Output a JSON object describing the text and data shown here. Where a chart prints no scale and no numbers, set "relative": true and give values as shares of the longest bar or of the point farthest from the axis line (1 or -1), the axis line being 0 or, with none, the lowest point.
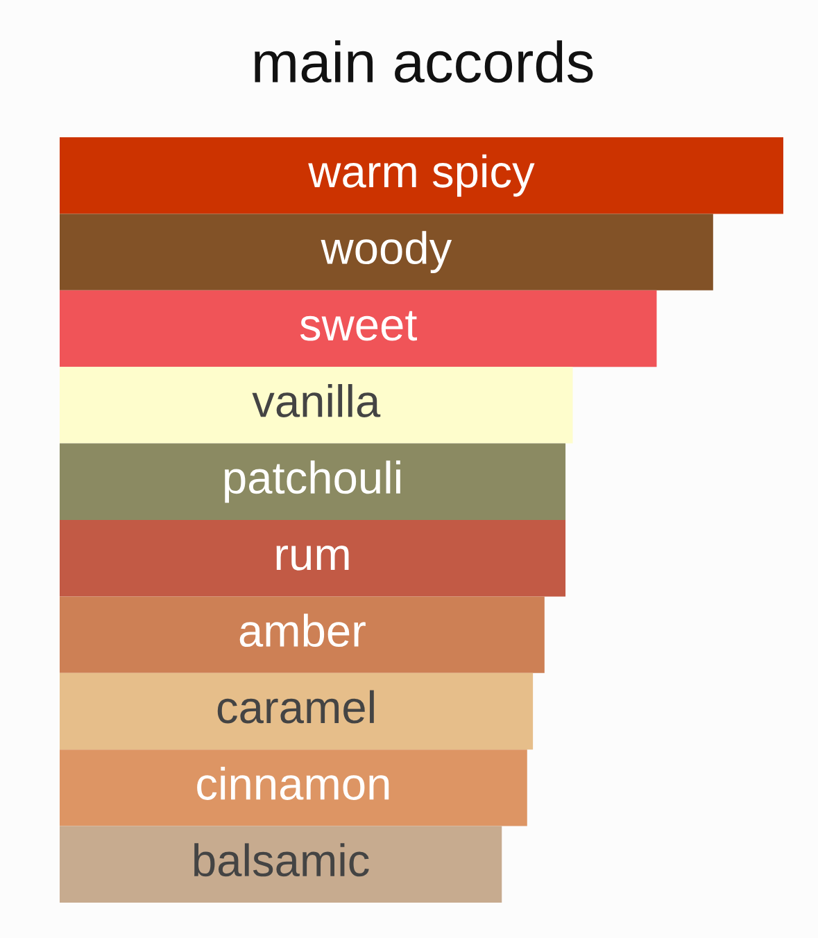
{
  "chart_data": {
    "type": "bar",
    "orientation": "horizontal",
    "relative": true,
    "title": "main accords",
    "categories": [
      "warm spicy",
      "woody",
      "sweet",
      "vanilla",
      "patchouli",
      "rum",
      "amber",
      "caramel",
      "cinnamon",
      "balsamic"
    ],
    "values": [
      1,
      0.903,
      0.825,
      0.709,
      0.699,
      0.699,
      0.67,
      0.654,
      0.646,
      0.611
    ],
    "colors": [
      "#cc3300",
      "#825227",
      "#f05458",
      "#fefdcc",
      "#8b8a62",
      "#c25a45",
      "#cd8055",
      "#e6be8a",
      "#dd9564",
      "#c7ab8f"
    ],
    "legend": false
  }
}
